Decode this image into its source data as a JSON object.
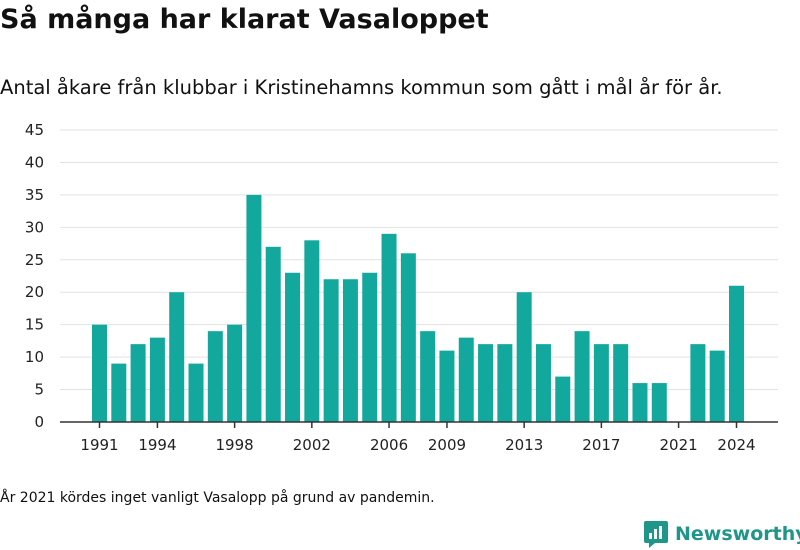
{
  "header": {
    "title": "Så många har klarat Vasaloppet",
    "subtitle": "Antal åkare från klubbar i Kristinehamns kommun som gått i mål år för år."
  },
  "footer": {
    "note": "År 2021 kördes inget vanligt Vasalopp på grund av pandemin.",
    "brand": "Newsworthy"
  },
  "colors": {
    "bar": "#13a89e",
    "grid": "#e2e2e2",
    "axis": "#333333",
    "brand": "#20958a"
  },
  "chart_data": {
    "type": "bar",
    "categories": [
      1991,
      1992,
      1993,
      1994,
      1995,
      1996,
      1997,
      1998,
      1999,
      2000,
      2001,
      2002,
      2003,
      2004,
      2005,
      2006,
      2007,
      2008,
      2009,
      2010,
      2011,
      2012,
      2013,
      2014,
      2015,
      2016,
      2017,
      2018,
      2019,
      2020,
      2021,
      2022,
      2023,
      2024
    ],
    "values": [
      15,
      9,
      12,
      13,
      20,
      9,
      14,
      15,
      35,
      27,
      23,
      28,
      22,
      22,
      23,
      29,
      26,
      14,
      11,
      13,
      12,
      12,
      20,
      12,
      7,
      14,
      12,
      12,
      6,
      6,
      0,
      12,
      11,
      21
    ],
    "x_tick_labels": [
      "1991",
      "1994",
      "1998",
      "2002",
      "2006",
      "2009",
      "2013",
      "2017",
      "2021",
      "2024"
    ],
    "y_ticks": [
      0,
      5,
      10,
      15,
      20,
      25,
      30,
      35,
      40,
      45
    ],
    "ylim": [
      0,
      45
    ],
    "grid": true,
    "xlabel": "",
    "ylabel": ""
  }
}
